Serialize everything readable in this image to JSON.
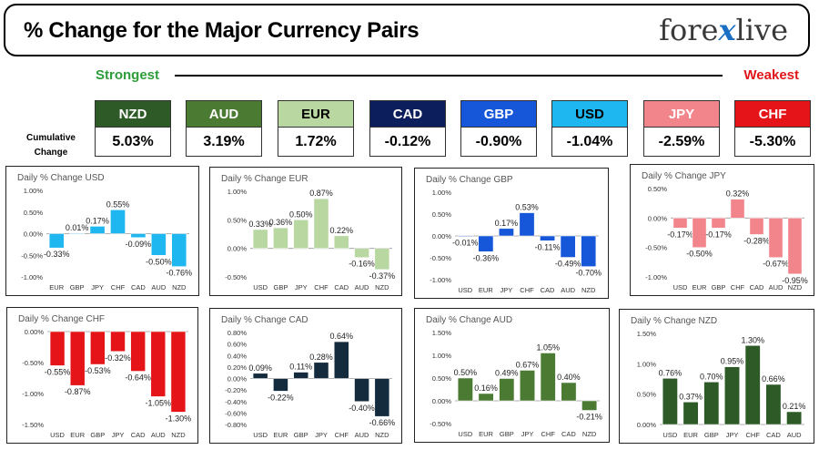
{
  "header": {
    "title": "% Change for the Major Currency Pairs",
    "logo_left": "fore",
    "logo_x": "x",
    "logo_right": "live"
  },
  "ranking": {
    "strongest": "Strongest",
    "weakest": "Weakest",
    "cumulative_label": "Cumulative Change",
    "currencies": [
      {
        "code": "NZD",
        "value": "5.03%",
        "color": "#2d5a27",
        "text": "#ffffff"
      },
      {
        "code": "AUD",
        "value": "3.19%",
        "color": "#4b7a33",
        "text": "#ffffff"
      },
      {
        "code": "EUR",
        "value": "1.72%",
        "color": "#b9d7a0",
        "text": "#000000"
      },
      {
        "code": "CAD",
        "value": "-0.12%",
        "color": "#0c1f5c",
        "text": "#ffffff"
      },
      {
        "code": "GBP",
        "value": "-0.90%",
        "color": "#1656d9",
        "text": "#ffffff"
      },
      {
        "code": "USD",
        "value": "-1.04%",
        "color": "#1fb7f0",
        "text": "#000000"
      },
      {
        "code": "JPY",
        "value": "-2.59%",
        "color": "#f2858c",
        "text": "#ffffff"
      },
      {
        "code": "CHF",
        "value": "-5.30%",
        "color": "#e41419",
        "text": "#ffffff"
      }
    ]
  },
  "chart_data": [
    {
      "type": "bar",
      "title": "Daily % Change USD",
      "categories": [
        "EUR",
        "GBP",
        "JPY",
        "CHF",
        "CAD",
        "AUD",
        "NZD"
      ],
      "values": [
        -0.33,
        0.01,
        0.17,
        0.55,
        -0.09,
        -0.5,
        -0.76
      ],
      "labels": [
        "-0.33%",
        "0.01%",
        "0.17%",
        "0.55%",
        "-0.09%",
        "-0.50%",
        "-0.76%"
      ],
      "ylim": [
        -1.0,
        1.0
      ],
      "yticks": [
        "1.00%",
        "0.50%",
        "0.00%",
        "-0.50%",
        "-1.00%"
      ],
      "color": "#1fb7f0"
    },
    {
      "type": "bar",
      "title": "Daily % Change EUR",
      "categories": [
        "USD",
        "GBP",
        "JPY",
        "CHF",
        "CAD",
        "AUD",
        "NZD"
      ],
      "values": [
        0.33,
        0.36,
        0.5,
        0.87,
        0.22,
        -0.16,
        -0.37
      ],
      "labels": [
        "0.33%",
        "0.36%",
        "0.50%",
        "0.87%",
        "0.22%",
        "-0.16%",
        "-0.37%"
      ],
      "ylim": [
        -0.5,
        1.0
      ],
      "yticks": [
        "1.00%",
        "0.50%",
        "0.00%",
        "-0.50%"
      ],
      "color": "#b9d7a0"
    },
    {
      "type": "bar",
      "title": "Daily % Change GBP",
      "categories": [
        "USD",
        "EUR",
        "JPY",
        "CHF",
        "CAD",
        "AUD",
        "NZD"
      ],
      "values": [
        -0.01,
        -0.36,
        0.17,
        0.53,
        -0.11,
        -0.49,
        -0.7
      ],
      "labels": [
        "-0.01%",
        "-0.36%",
        "0.17%",
        "0.53%",
        "-0.11%",
        "-0.49%",
        "-0.70%"
      ],
      "ylim": [
        -1.0,
        1.0
      ],
      "yticks": [
        "1.00%",
        "0.50%",
        "0.00%",
        "-0.50%",
        "-1.00%"
      ],
      "color": "#1656d9"
    },
    {
      "type": "bar",
      "title": "Daily % Change JPY",
      "categories": [
        "USD",
        "EUR",
        "GBP",
        "CHF",
        "CAD",
        "AUD",
        "NZD"
      ],
      "values": [
        -0.17,
        -0.5,
        -0.17,
        0.32,
        -0.28,
        -0.67,
        -0.95
      ],
      "labels": [
        "-0.17%",
        "-0.50%",
        "-0.17%",
        "0.32%",
        "-0.28%",
        "-0.67%",
        "-0.95%"
      ],
      "ylim": [
        -1.0,
        0.5
      ],
      "yticks": [
        "0.50%",
        "0.00%",
        "-0.50%",
        "-1.00%"
      ],
      "color": "#f2858c"
    },
    {
      "type": "bar",
      "title": "Daily % Change CHF",
      "categories": [
        "USD",
        "EUR",
        "GBP",
        "JPY",
        "CAD",
        "AUD",
        "NZD"
      ],
      "values": [
        -0.55,
        -0.87,
        -0.53,
        -0.32,
        -0.64,
        -1.05,
        -1.3
      ],
      "labels": [
        "-0.55%",
        "-0.87%",
        "-0.53%",
        "-0.32%",
        "-0.64%",
        "-1.05%",
        "-1.30%"
      ],
      "ylim": [
        -1.5,
        0.0
      ],
      "yticks": [
        "0.00%",
        "-0.50%",
        "-1.00%",
        "-1.50%"
      ],
      "color": "#e41419"
    },
    {
      "type": "bar",
      "title": "Daily % Change CAD",
      "categories": [
        "USD",
        "EUR",
        "GBP",
        "JPY",
        "CHF",
        "AUD",
        "NZD"
      ],
      "values": [
        0.09,
        -0.22,
        0.11,
        0.28,
        0.64,
        -0.4,
        -0.66
      ],
      "labels": [
        "0.09%",
        "-0.22%",
        "0.11%",
        "0.28%",
        "0.64%",
        "-0.40%",
        "-0.66%"
      ],
      "ylim": [
        -0.8,
        0.8
      ],
      "yticks": [
        "0.80%",
        "0.60%",
        "0.40%",
        "0.20%",
        "0.00%",
        "-0.20%",
        "-0.40%",
        "-0.60%",
        "-0.80%"
      ],
      "color": "#142b3d"
    },
    {
      "type": "bar",
      "title": "Daily % Change AUD",
      "categories": [
        "USD",
        "EUR",
        "GBP",
        "JPY",
        "CHF",
        "CAD",
        "NZD"
      ],
      "values": [
        0.5,
        0.16,
        0.49,
        0.67,
        1.05,
        0.4,
        -0.21
      ],
      "labels": [
        "0.50%",
        "0.16%",
        "0.49%",
        "0.67%",
        "1.05%",
        "0.40%",
        "-0.21%"
      ],
      "ylim": [
        -0.5,
        1.5
      ],
      "yticks": [
        "1.50%",
        "1.00%",
        "0.50%",
        "0.00%",
        "-0.50%"
      ],
      "color": "#4b7a33"
    },
    {
      "type": "bar",
      "title": "Daily % Change NZD",
      "categories": [
        "USD",
        "EUR",
        "GBP",
        "JPY",
        "CHF",
        "CAD",
        "AUD"
      ],
      "values": [
        0.76,
        0.37,
        0.7,
        0.95,
        1.3,
        0.66,
        0.21
      ],
      "labels": [
        "0.76%",
        "0.37%",
        "0.70%",
        "0.95%",
        "1.30%",
        "0.66%",
        "0.21%"
      ],
      "ylim": [
        0.0,
        1.5
      ],
      "yticks": [
        "1.50%",
        "1.00%",
        "0.50%",
        "0.00%"
      ],
      "color": "#2d5a27"
    }
  ]
}
